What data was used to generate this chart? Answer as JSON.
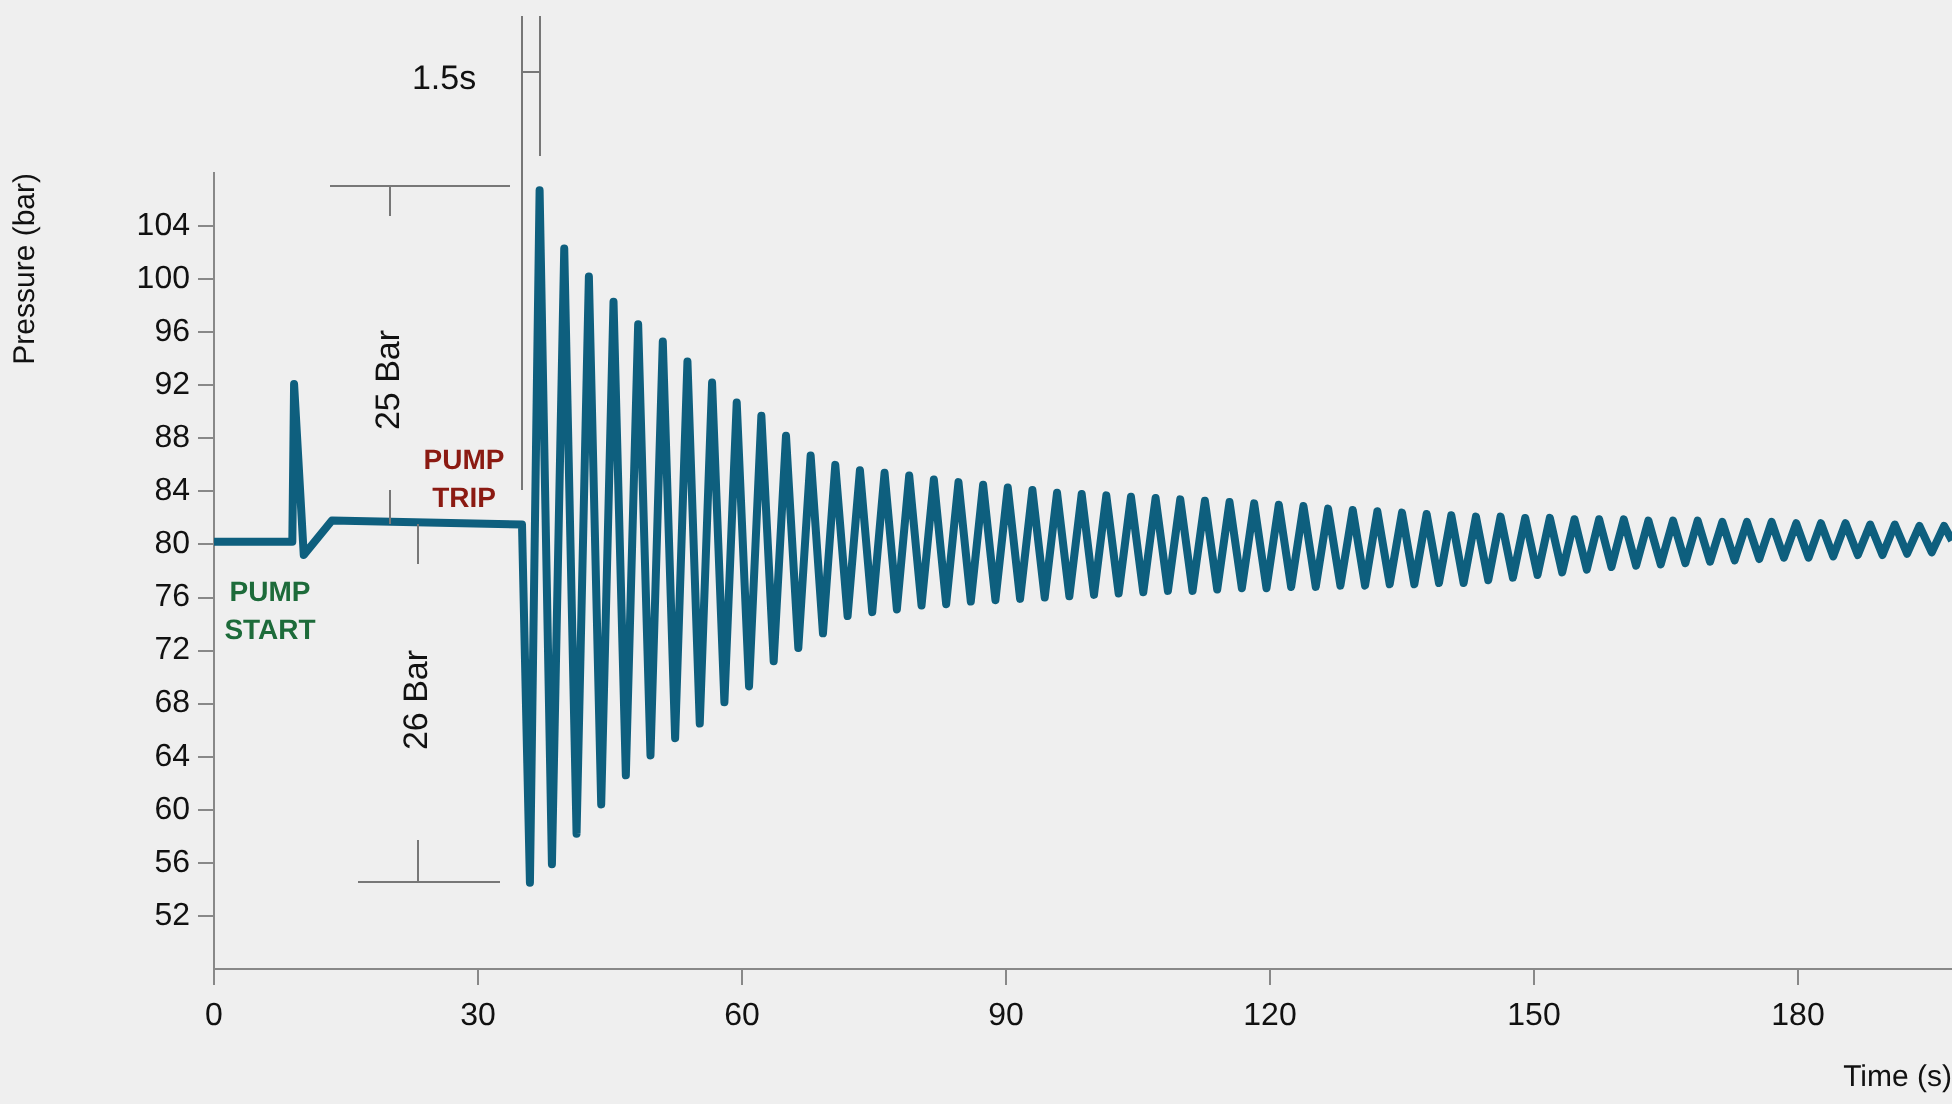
{
  "chart_data": {
    "type": "line",
    "xlabel": "Time (s)",
    "ylabel": "Pressure (bar)",
    "annotations": [
      "PUMP START",
      "PUMP TRIP",
      "25 Bar",
      "26 Bar",
      "1.5s"
    ],
    "x": [
      0,
      8.9,
      9.1,
      10.2,
      13.4,
      35.0,
      35.9,
      37.0,
      38.4,
      39.8,
      41.2,
      42.6,
      44.0,
      45.4,
      46.8,
      48.2,
      49.6,
      51.0,
      52.4,
      53.8,
      55.2,
      56.6,
      58.0,
      59.4,
      60.8,
      62.2,
      63.6,
      65.0,
      66.4,
      67.8,
      69.2,
      70.6,
      72.0,
      73.4,
      74.8,
      76.2,
      77.6,
      79.0,
      80.4,
      81.8,
      83.2,
      84.6,
      86.0,
      87.4,
      88.8,
      90.2,
      91.6,
      93.0,
      94.4,
      95.8,
      97.2,
      98.6,
      100.0,
      101.4,
      102.8,
      104.2,
      105.6,
      107.0,
      108.4,
      109.8,
      111.2,
      112.6,
      114.0,
      115.4,
      116.8,
      118.2,
      119.6,
      121.0,
      122.4,
      123.8,
      125.2,
      126.6,
      128.0,
      129.4,
      130.8,
      132.2,
      133.6,
      135.0,
      136.4,
      137.8,
      139.2,
      140.6,
      142.0,
      143.4,
      144.8,
      146.2,
      147.6,
      149.0,
      150.4,
      151.8,
      153.2,
      154.6,
      156.0,
      157.4,
      158.8,
      160.2,
      161.6,
      163.0,
      164.4,
      165.8,
      167.2,
      168.6,
      170.0,
      171.4,
      172.8,
      174.2,
      175.6,
      177.0,
      178.4,
      179.8,
      181.2,
      182.6,
      184.0,
      185.4,
      186.8,
      188.2,
      189.6,
      191.0,
      192.4,
      193.8,
      195.2,
      196.6,
      197.5
    ],
    "values": [
      80.2,
      80.2,
      92.1,
      79.2,
      81.8,
      81.5,
      54.5,
      106.7,
      55.9,
      102.3,
      58.2,
      100.2,
      60.4,
      98.3,
      62.6,
      96.6,
      64.1,
      95.3,
      65.4,
      93.8,
      66.5,
      92.2,
      68.1,
      90.7,
      69.3,
      89.7,
      71.2,
      88.2,
      72.2,
      86.7,
      73.3,
      86.0,
      74.6,
      85.6,
      74.9,
      85.4,
      75.1,
      85.2,
      75.4,
      84.9,
      75.5,
      84.7,
      75.7,
      84.5,
      75.8,
      84.3,
      75.9,
      84.1,
      76.0,
      83.9,
      76.1,
      83.8,
      76.2,
      83.7,
      76.3,
      83.6,
      76.4,
      83.5,
      76.5,
      83.4,
      76.5,
      83.3,
      76.6,
      83.2,
      76.7,
      83.1,
      76.7,
      83.0,
      76.8,
      82.9,
      76.8,
      82.7,
      76.9,
      82.6,
      76.9,
      82.5,
      77.0,
      82.4,
      77.0,
      82.3,
      77.1,
      82.2,
      77.1,
      82.1,
      77.3,
      82.1,
      77.5,
      82.0,
      77.7,
      82.0,
      77.9,
      81.9,
      78.1,
      81.9,
      78.3,
      81.9,
      78.4,
      81.8,
      78.5,
      81.8,
      78.6,
      81.8,
      78.7,
      81.7,
      78.8,
      81.7,
      78.9,
      81.7,
      79.0,
      81.6,
      79.0,
      81.6,
      79.1,
      81.6,
      79.2,
      81.5,
      79.2,
      81.5,
      79.3,
      81.4,
      79.4,
      81.4,
      80.3
    ],
    "color": "#0e5f7e",
    "xlim": [
      0,
      197.5
    ],
    "ylim": [
      48,
      108
    ],
    "xticks": [
      0,
      30,
      60,
      90,
      120,
      150,
      180
    ],
    "yticks": [
      52,
      56,
      60,
      64,
      68,
      72,
      76,
      80,
      84,
      88,
      92,
      96,
      100,
      104
    ]
  }
}
